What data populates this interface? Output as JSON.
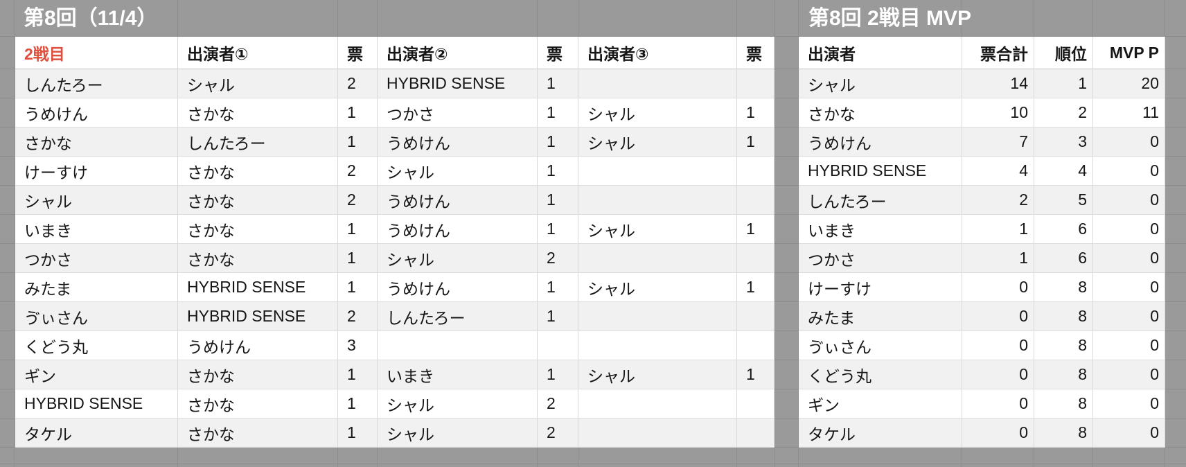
{
  "left_table": {
    "title": "第8回（11/4）",
    "first_header": "2戦目",
    "headers": [
      "出演者①",
      "票",
      "出演者②",
      "票",
      "出演者③",
      "票"
    ],
    "rows": [
      [
        "しんたろー",
        "シャル",
        "2",
        "HYBRID SENSE",
        "1",
        "",
        ""
      ],
      [
        "うめけん",
        "さかな",
        "1",
        "つかさ",
        "1",
        "シャル",
        "1"
      ],
      [
        "さかな",
        "しんたろー",
        "1",
        "うめけん",
        "1",
        "シャル",
        "1"
      ],
      [
        "けーすけ",
        "さかな",
        "2",
        "シャル",
        "1",
        "",
        ""
      ],
      [
        "シャル",
        "さかな",
        "2",
        "うめけん",
        "1",
        "",
        ""
      ],
      [
        "いまき",
        "さかな",
        "1",
        "うめけん",
        "1",
        "シャル",
        "1"
      ],
      [
        "つかさ",
        "さかな",
        "1",
        "シャル",
        "2",
        "",
        ""
      ],
      [
        "みたま",
        "HYBRID SENSE",
        "1",
        "うめけん",
        "1",
        "シャル",
        "1"
      ],
      [
        "ゔぃさん",
        "HYBRID SENSE",
        "2",
        "しんたろー",
        "1",
        "",
        ""
      ],
      [
        "くどう丸",
        "うめけん",
        "3",
        "",
        "",
        "",
        ""
      ],
      [
        "ギン",
        "さかな",
        "1",
        "いまき",
        "1",
        "シャル",
        "1"
      ],
      [
        "HYBRID SENSE",
        "さかな",
        "1",
        "シャル",
        "2",
        "",
        ""
      ],
      [
        "タケル",
        "さかな",
        "1",
        "シャル",
        "2",
        "",
        ""
      ]
    ]
  },
  "right_table": {
    "title": "第8回 2戦目 MVP",
    "headers": [
      "出演者",
      "票合計",
      "順位",
      "MVP P"
    ],
    "rows": [
      [
        "シャル",
        "14",
        "1",
        "20"
      ],
      [
        "さかな",
        "10",
        "2",
        "11"
      ],
      [
        "うめけん",
        "7",
        "3",
        "0"
      ],
      [
        "HYBRID SENSE",
        "4",
        "4",
        "0"
      ],
      [
        "しんたろー",
        "2",
        "5",
        "0"
      ],
      [
        "いまき",
        "1",
        "6",
        "0"
      ],
      [
        "つかさ",
        "1",
        "6",
        "0"
      ],
      [
        "けーすけ",
        "0",
        "8",
        "0"
      ],
      [
        "みたま",
        "0",
        "8",
        "0"
      ],
      [
        "ゔぃさん",
        "0",
        "8",
        "0"
      ],
      [
        "くどう丸",
        "0",
        "8",
        "0"
      ],
      [
        "ギン",
        "0",
        "8",
        "0"
      ],
      [
        "タケル",
        "0",
        "8",
        "0"
      ]
    ]
  },
  "colors": {
    "accent_red": "#DE4F3E",
    "sheet_gray": "#9A9A9A",
    "stripe_gray": "#F1F1F2",
    "title_text": "#FFFFFF"
  }
}
